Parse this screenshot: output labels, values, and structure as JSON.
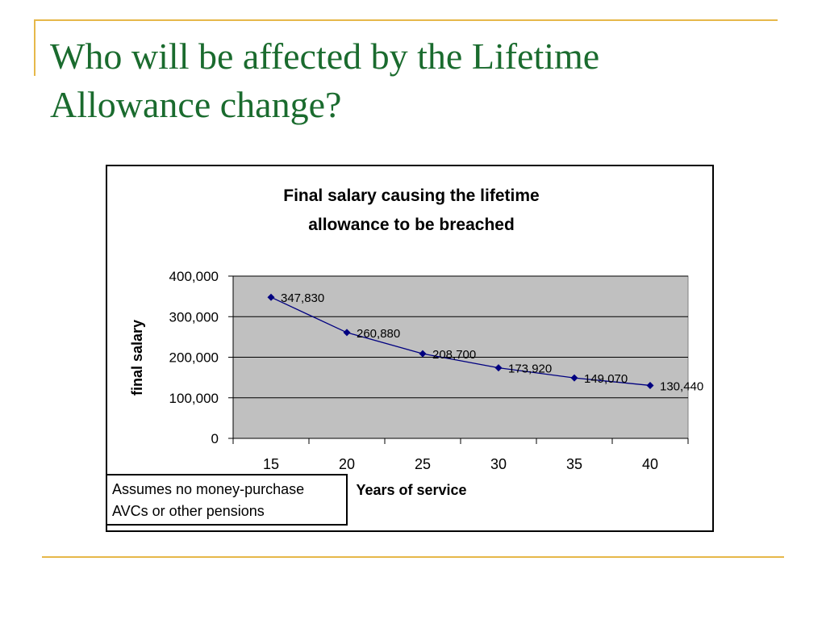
{
  "slide": {
    "title_lines": [
      "Who will be affected by the Lifetime",
      "Allowance change?"
    ]
  },
  "note": {
    "lines": [
      "Assumes no money-purchase",
      "AVCs or other pensions"
    ]
  },
  "colors": {
    "title": "#1a6b2e",
    "accent_rule": "#e6b84a",
    "plot_area": "#c0c0c0",
    "series": "#000080"
  },
  "chart_data": {
    "type": "line",
    "title_lines": [
      "Final salary causing the lifetime",
      "allowance to be breached"
    ],
    "xlabel": "Years of service",
    "ylabel": "final salary",
    "categories": [
      "15",
      "20",
      "25",
      "30",
      "35",
      "40"
    ],
    "series": [
      {
        "values": [
          347830,
          260880,
          208700,
          173920,
          149070,
          130440
        ],
        "labels": [
          "347,830",
          "260,880",
          "208,700",
          "173,920",
          "149,070",
          "130,440"
        ]
      }
    ],
    "ylim": [
      0,
      400000
    ],
    "yticks": [
      0,
      100000,
      200000,
      300000,
      400000
    ],
    "ytick_labels": [
      "0",
      "100,000",
      "200,000",
      "300,000",
      "400,000"
    ],
    "grid": true,
    "legend": "none"
  }
}
